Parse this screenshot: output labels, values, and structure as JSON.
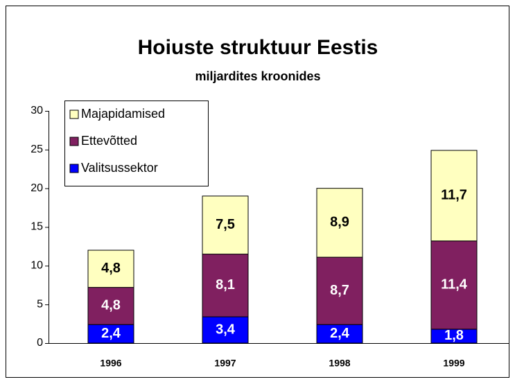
{
  "chart_data": {
    "type": "stacked_bar",
    "title": "Hoiuste struktuur Eestis",
    "subtitle": "miljardites kroonides",
    "categories": [
      "1996",
      "1997",
      "1998",
      "1999"
    ],
    "series": [
      {
        "name": "Valitsussektor",
        "color": "#0000ff",
        "values": [
          2.4,
          3.4,
          2.4,
          1.8
        ],
        "value_labels": [
          "2,4",
          "3,4",
          "2,4",
          "1,8"
        ]
      },
      {
        "name": "Ettevõtted",
        "color": "#802060",
        "values": [
          4.8,
          8.1,
          8.7,
          11.4
        ],
        "value_labels": [
          "4,8",
          "8,1",
          "8,7",
          "11,4"
        ]
      },
      {
        "name": "Majapidamised",
        "color": "#ffffc0",
        "values": [
          4.8,
          7.5,
          8.9,
          11.7
        ],
        "value_labels": [
          "4,8",
          "7,5",
          "8,9",
          "11,7"
        ]
      }
    ],
    "ylim": [
      0,
      30
    ],
    "yticks": [
      0,
      5,
      10,
      15,
      20,
      25,
      30
    ],
    "legend": "upper left"
  }
}
